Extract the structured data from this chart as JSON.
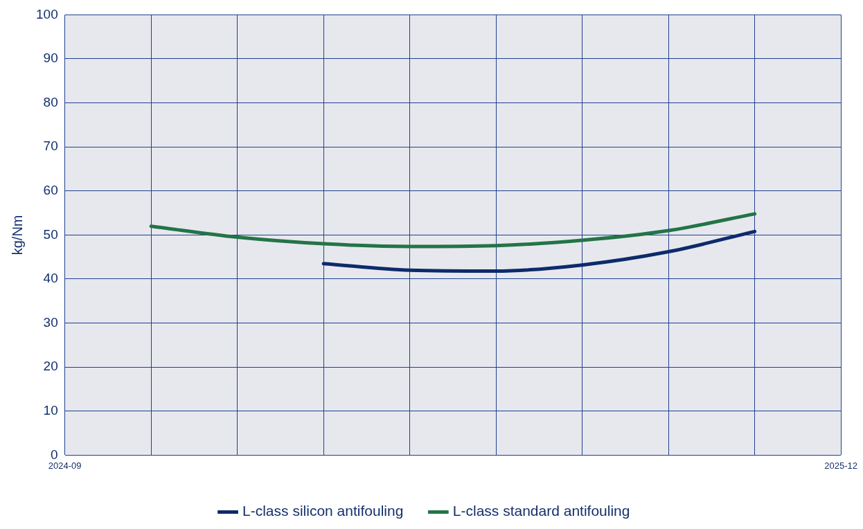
{
  "chart_data": {
    "type": "line",
    "ylabel": "kg/Nm",
    "categories": [
      "2024-09",
      null,
      null,
      null,
      null,
      null,
      null,
      null,
      null,
      "2025-12"
    ],
    "series": [
      {
        "name": "L-class silicon antifouling",
        "color": "#0d2a6b",
        "values": [
          null,
          null,
          null,
          43.5,
          42,
          41.8,
          43.2,
          46.2,
          50.8,
          null
        ]
      },
      {
        "name": "L-class standard antifouling",
        "color": "#237447",
        "values": [
          null,
          52,
          49.5,
          48,
          47.4,
          47.6,
          48.8,
          51,
          54.8,
          null
        ]
      }
    ],
    "ylim": [
      0,
      100
    ],
    "yticks": [
      0,
      10,
      20,
      30,
      40,
      50,
      60,
      70,
      80,
      90,
      100
    ],
    "grid": true,
    "legend": "bottom",
    "marker": "none"
  }
}
